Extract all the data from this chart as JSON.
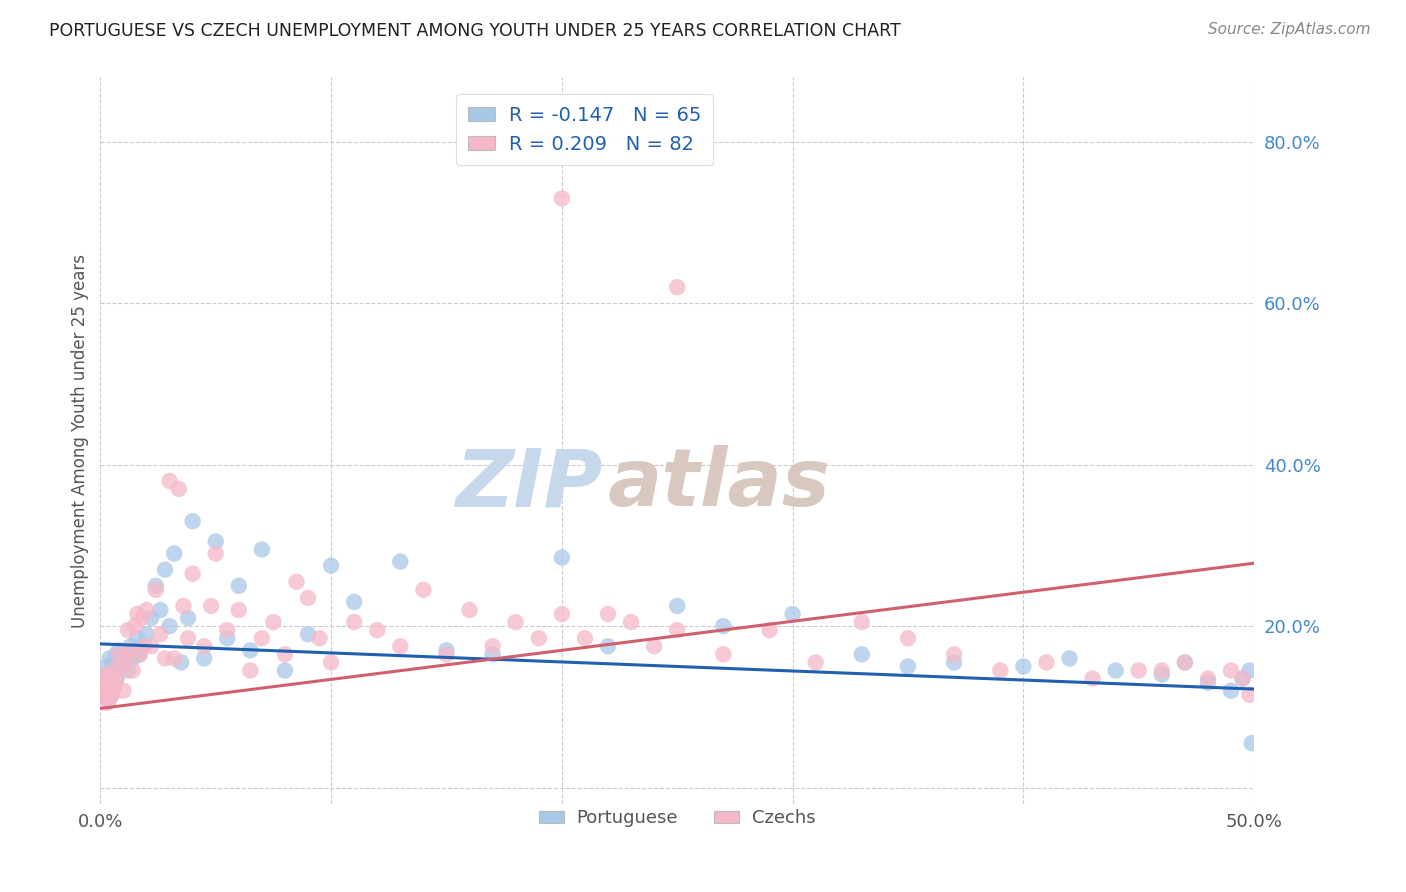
{
  "title": "PORTUGUESE VS CZECH UNEMPLOYMENT AMONG YOUTH UNDER 25 YEARS CORRELATION CHART",
  "source": "Source: ZipAtlas.com",
  "ylabel": "Unemployment Among Youth under 25 years",
  "xlim": [
    0.0,
    0.5
  ],
  "ylim": [
    -0.02,
    0.88
  ],
  "legend_labels": [
    "Portuguese",
    "Czechs"
  ],
  "legend_r_blue": "R = -0.147",
  "legend_n_blue": "N = 65",
  "legend_r_pink": "R = 0.209",
  "legend_n_pink": "N = 82",
  "blue_scatter_color": "#A8C8E8",
  "pink_scatter_color": "#F5B8C8",
  "blue_line_color": "#2060B0",
  "pink_line_color": "#D06070",
  "title_color": "#222222",
  "source_color": "#888888",
  "right_tick_color": "#4488CC",
  "axis_label_color": "#555555",
  "grid_color": "#CCCCCC",
  "watermark_zip_color": "#C8D8EC",
  "watermark_atlas_color": "#D8C8C0",
  "blue_line_y0": 0.178,
  "blue_line_y1": 0.122,
  "pink_line_y0": 0.098,
  "pink_line_y1": 0.278,
  "portuguese_x": [
    0.001,
    0.002,
    0.002,
    0.003,
    0.003,
    0.004,
    0.004,
    0.005,
    0.005,
    0.006,
    0.006,
    0.007,
    0.007,
    0.008,
    0.009,
    0.01,
    0.011,
    0.012,
    0.013,
    0.014,
    0.015,
    0.016,
    0.017,
    0.018,
    0.02,
    0.022,
    0.024,
    0.026,
    0.028,
    0.03,
    0.032,
    0.035,
    0.038,
    0.04,
    0.045,
    0.05,
    0.055,
    0.06,
    0.065,
    0.07,
    0.08,
    0.09,
    0.1,
    0.11,
    0.13,
    0.15,
    0.17,
    0.2,
    0.22,
    0.25,
    0.27,
    0.3,
    0.33,
    0.35,
    0.37,
    0.4,
    0.42,
    0.44,
    0.46,
    0.47,
    0.48,
    0.49,
    0.495,
    0.498,
    0.499
  ],
  "portuguese_y": [
    0.13,
    0.14,
    0.12,
    0.15,
    0.11,
    0.16,
    0.13,
    0.145,
    0.115,
    0.155,
    0.125,
    0.165,
    0.135,
    0.17,
    0.15,
    0.16,
    0.155,
    0.145,
    0.175,
    0.16,
    0.17,
    0.185,
    0.165,
    0.175,
    0.19,
    0.21,
    0.25,
    0.22,
    0.27,
    0.2,
    0.29,
    0.155,
    0.21,
    0.33,
    0.16,
    0.305,
    0.185,
    0.25,
    0.17,
    0.295,
    0.145,
    0.19,
    0.275,
    0.23,
    0.28,
    0.17,
    0.165,
    0.285,
    0.175,
    0.225,
    0.2,
    0.215,
    0.165,
    0.15,
    0.155,
    0.15,
    0.16,
    0.145,
    0.14,
    0.155,
    0.13,
    0.12,
    0.135,
    0.145,
    0.055
  ],
  "czech_x": [
    0.001,
    0.001,
    0.002,
    0.002,
    0.003,
    0.003,
    0.004,
    0.004,
    0.005,
    0.005,
    0.006,
    0.006,
    0.007,
    0.008,
    0.009,
    0.01,
    0.011,
    0.012,
    0.013,
    0.014,
    0.015,
    0.016,
    0.017,
    0.018,
    0.019,
    0.02,
    0.022,
    0.024,
    0.026,
    0.028,
    0.03,
    0.032,
    0.034,
    0.036,
    0.038,
    0.04,
    0.045,
    0.048,
    0.05,
    0.055,
    0.06,
    0.065,
    0.07,
    0.075,
    0.08,
    0.085,
    0.09,
    0.095,
    0.1,
    0.11,
    0.12,
    0.13,
    0.14,
    0.15,
    0.16,
    0.17,
    0.18,
    0.19,
    0.2,
    0.21,
    0.22,
    0.23,
    0.24,
    0.25,
    0.27,
    0.29,
    0.31,
    0.33,
    0.35,
    0.37,
    0.39,
    0.41,
    0.43,
    0.45,
    0.46,
    0.47,
    0.48,
    0.49,
    0.495,
    0.498,
    0.2,
    0.25
  ],
  "czech_y": [
    0.13,
    0.12,
    0.14,
    0.115,
    0.125,
    0.105,
    0.13,
    0.11,
    0.14,
    0.115,
    0.125,
    0.145,
    0.135,
    0.165,
    0.15,
    0.12,
    0.16,
    0.195,
    0.17,
    0.145,
    0.2,
    0.215,
    0.165,
    0.21,
    0.175,
    0.22,
    0.175,
    0.245,
    0.19,
    0.16,
    0.38,
    0.16,
    0.37,
    0.225,
    0.185,
    0.265,
    0.175,
    0.225,
    0.29,
    0.195,
    0.22,
    0.145,
    0.185,
    0.205,
    0.165,
    0.255,
    0.235,
    0.185,
    0.155,
    0.205,
    0.195,
    0.175,
    0.245,
    0.165,
    0.22,
    0.175,
    0.205,
    0.185,
    0.215,
    0.185,
    0.215,
    0.205,
    0.175,
    0.195,
    0.165,
    0.195,
    0.155,
    0.205,
    0.185,
    0.165,
    0.145,
    0.155,
    0.135,
    0.145,
    0.145,
    0.155,
    0.135,
    0.145,
    0.135,
    0.115,
    0.73,
    0.62
  ]
}
